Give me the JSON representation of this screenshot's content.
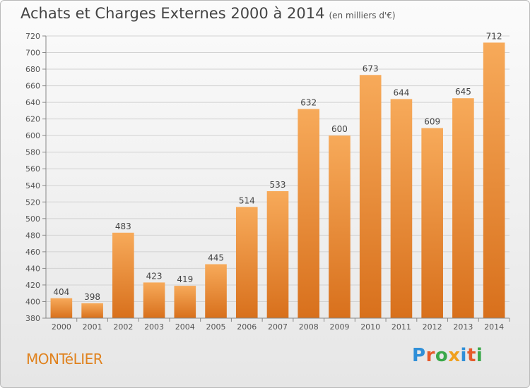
{
  "header": {
    "title": "Achats et Charges Externes 2000 à 2014",
    "unit": "(en milliers d'€)"
  },
  "footer": {
    "town": "MONTéLIER",
    "logo_letters": [
      "P",
      "r",
      "o",
      "x",
      "i",
      "t",
      "i"
    ],
    "logo_colors": [
      "#2f8fd8",
      "#e65a2b",
      "#3aa84a",
      "#f0a01e",
      "#2f8fd8",
      "#e65a2b",
      "#3aa84a"
    ]
  },
  "colors": {
    "bar_light": "#f7aa5a",
    "bar_dark": "#d8701c",
    "grid": "#d2d2d2"
  },
  "chart_data": {
    "type": "bar",
    "title": "Achats et Charges Externes 2000 à 2014",
    "subtitle": "(en milliers d'€)",
    "xlabel": "",
    "ylabel": "",
    "categories": [
      "2000",
      "2001",
      "2002",
      "2003",
      "2004",
      "2005",
      "2006",
      "2007",
      "2008",
      "2009",
      "2010",
      "2011",
      "2012",
      "2013",
      "2014"
    ],
    "values": [
      404,
      398,
      483,
      423,
      419,
      445,
      514,
      533,
      632,
      600,
      673,
      644,
      609,
      645,
      712
    ],
    "ylim": [
      380,
      720
    ],
    "yticks": [
      380,
      400,
      420,
      440,
      460,
      480,
      500,
      520,
      540,
      560,
      580,
      600,
      620,
      640,
      660,
      680,
      700,
      720
    ],
    "grid": true,
    "legend": "none"
  }
}
